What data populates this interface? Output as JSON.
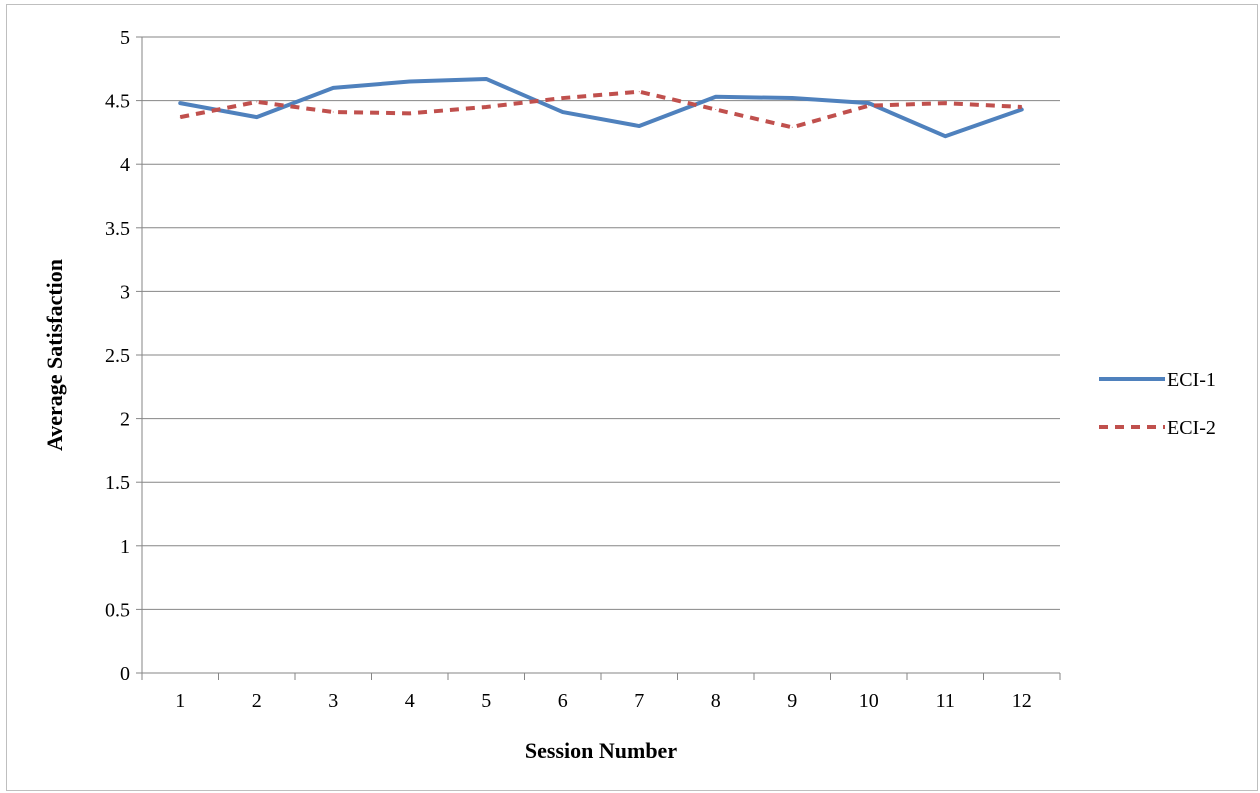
{
  "chart_data": {
    "type": "line",
    "title": "",
    "xlabel": "Session Number",
    "ylabel": "Average Satisfaction",
    "categories": [
      "1",
      "2",
      "3",
      "4",
      "5",
      "6",
      "7",
      "8",
      "9",
      "10",
      "11",
      "12"
    ],
    "ylim": [
      0,
      5
    ],
    "yticks": [
      "0",
      "0.5",
      "1",
      "1.5",
      "2",
      "2.5",
      "3",
      "3.5",
      "4",
      "4.5",
      "5"
    ],
    "grid": true,
    "legend_position": "right",
    "series": [
      {
        "name": "ECI-1",
        "values": [
          4.48,
          4.37,
          4.6,
          4.65,
          4.67,
          4.41,
          4.3,
          4.53,
          4.52,
          4.48,
          4.22,
          4.43
        ],
        "color": "#4f81bd",
        "style": "solid"
      },
      {
        "name": "ECI-2",
        "values": [
          4.37,
          4.49,
          4.41,
          4.4,
          4.45,
          4.52,
          4.57,
          4.43,
          4.29,
          4.46,
          4.48,
          4.45
        ],
        "color": "#c0504d",
        "style": "dashed"
      }
    ]
  }
}
